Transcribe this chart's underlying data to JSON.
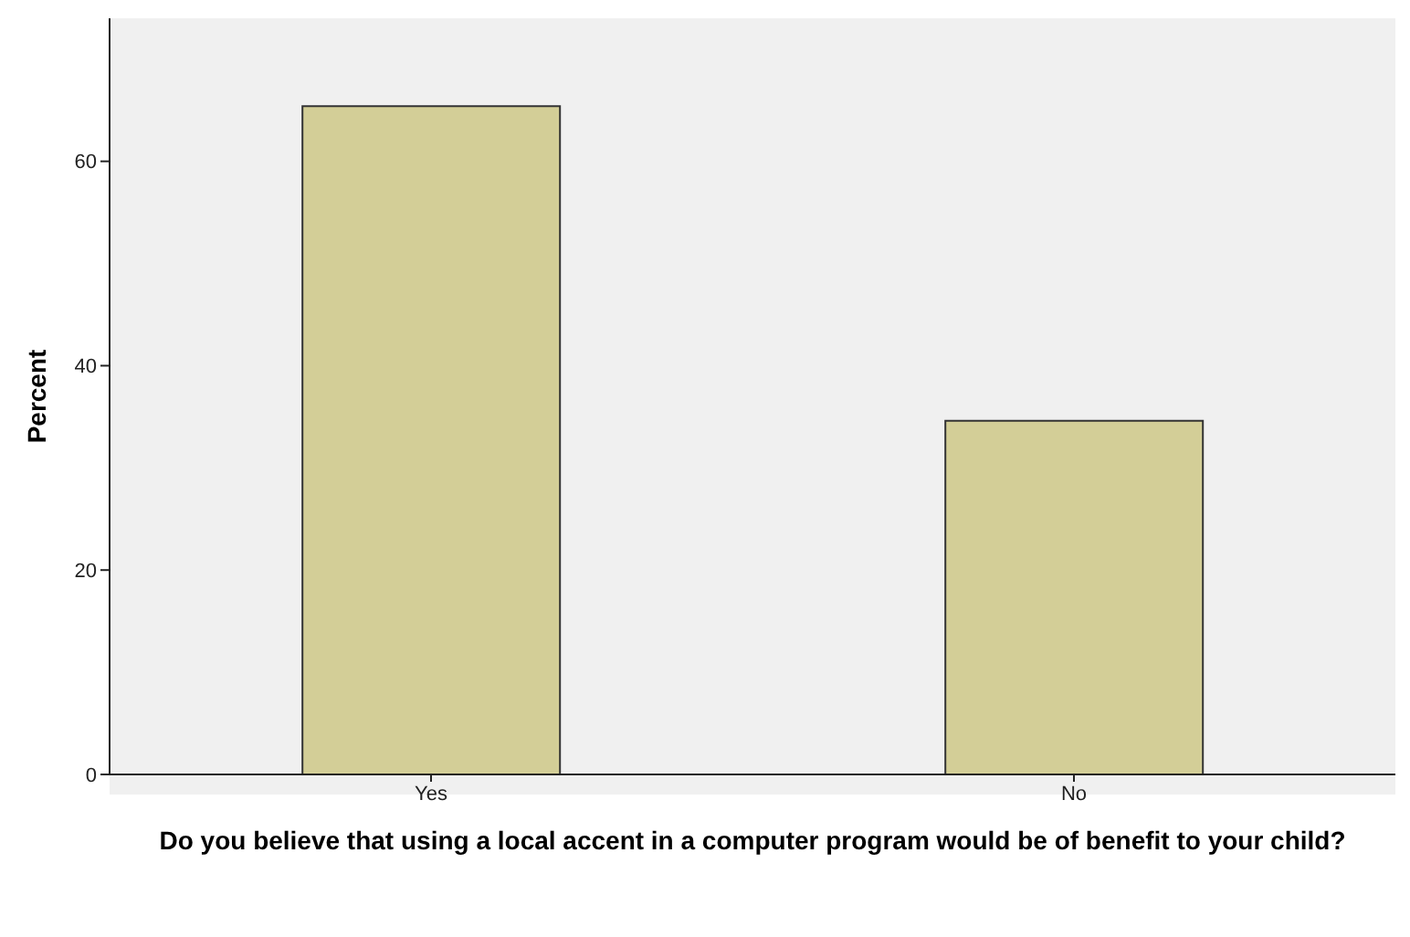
{
  "chart_data": {
    "type": "bar",
    "xlabel": "Do you believe that using a local accent in a computer program would be of benefit to your child?",
    "ylabel": "Percent",
    "categories": [
      "Yes",
      "No"
    ],
    "values": [
      65.4,
      34.6
    ],
    "color": "#d3ce97",
    "ylim": [
      0,
      74
    ],
    "yticks": [
      0,
      20,
      40,
      60
    ],
    "grid": false,
    "legend": false
  }
}
